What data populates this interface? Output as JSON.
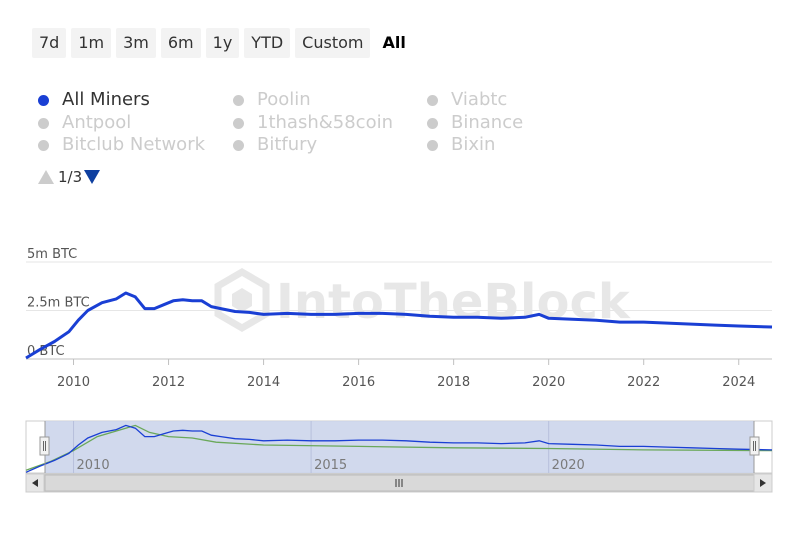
{
  "range_buttons": [
    {
      "label": "7d"
    },
    {
      "label": "1m"
    },
    {
      "label": "3m"
    },
    {
      "label": "6m"
    },
    {
      "label": "1y"
    },
    {
      "label": "YTD"
    },
    {
      "label": "Custom"
    },
    {
      "label": "All"
    }
  ],
  "active_range": "All",
  "legend": [
    {
      "label": "All Miners",
      "enabled": true
    },
    {
      "label": "Poolin",
      "enabled": false
    },
    {
      "label": "Viabtc",
      "enabled": false
    },
    {
      "label": "Antpool",
      "enabled": false
    },
    {
      "label": "1thash&58coin",
      "enabled": false
    },
    {
      "label": "Binance",
      "enabled": false
    },
    {
      "label": "Bitclub Network",
      "enabled": false
    },
    {
      "label": "Bitfury",
      "enabled": false
    },
    {
      "label": "Bixin",
      "enabled": false
    }
  ],
  "pager": {
    "text": "1/3"
  },
  "watermark": "IntoTheBlock",
  "colors": {
    "series": "#1a3fd4",
    "navigator_secondary": "#6aa85a",
    "disabled": "#cccccc"
  },
  "chart_data": {
    "type": "line",
    "y_unit": "BTC",
    "y_ticks": [
      {
        "value": 0,
        "label": "0 BTC"
      },
      {
        "value": 2.5,
        "label": "2.5m BTC"
      },
      {
        "value": 5,
        "label": "5m BTC"
      }
    ],
    "ylim": [
      0,
      5
    ],
    "xlim": [
      2009.0,
      2024.7
    ],
    "x_ticks": [
      2010,
      2012,
      2014,
      2016,
      2018,
      2020,
      2022,
      2024
    ],
    "grid": true,
    "series": [
      {
        "name": "All Miners",
        "x": [
          2009.0,
          2009.3,
          2009.6,
          2009.9,
          2010.1,
          2010.3,
          2010.6,
          2010.9,
          2011.1,
          2011.3,
          2011.5,
          2011.7,
          2011.9,
          2012.1,
          2012.3,
          2012.5,
          2012.7,
          2012.9,
          2013.1,
          2013.4,
          2013.7,
          2014.0,
          2014.5,
          2015.0,
          2015.5,
          2016.0,
          2016.5,
          2017.0,
          2017.5,
          2018.0,
          2018.5,
          2019.0,
          2019.5,
          2019.8,
          2020.0,
          2020.5,
          2021.0,
          2021.5,
          2022.0,
          2022.5,
          2023.0,
          2023.5,
          2024.0,
          2024.7
        ],
        "values": [
          0.05,
          0.5,
          0.9,
          1.4,
          2.0,
          2.5,
          2.9,
          3.1,
          3.4,
          3.2,
          2.6,
          2.6,
          2.8,
          3.0,
          3.05,
          3.0,
          3.0,
          2.7,
          2.6,
          2.45,
          2.4,
          2.3,
          2.35,
          2.3,
          2.3,
          2.35,
          2.35,
          2.3,
          2.2,
          2.15,
          2.15,
          2.1,
          2.15,
          2.3,
          2.1,
          2.05,
          2.0,
          1.9,
          1.9,
          1.85,
          1.8,
          1.75,
          1.7,
          1.65
        ]
      }
    ],
    "navigator": {
      "x_ticks": [
        2010,
        2015,
        2020
      ],
      "secondary_series": {
        "x": [
          2009.0,
          2009.5,
          2010.0,
          2010.5,
          2011.0,
          2011.3,
          2011.6,
          2012.0,
          2012.5,
          2013.0,
          2014.0,
          2016.0,
          2018.0,
          2020.0,
          2022.0,
          2024.7
        ],
        "values": [
          0.2,
          0.8,
          1.6,
          2.6,
          3.1,
          3.4,
          2.9,
          2.6,
          2.5,
          2.2,
          2.0,
          1.9,
          1.8,
          1.75,
          1.65,
          1.6
        ]
      }
    }
  }
}
